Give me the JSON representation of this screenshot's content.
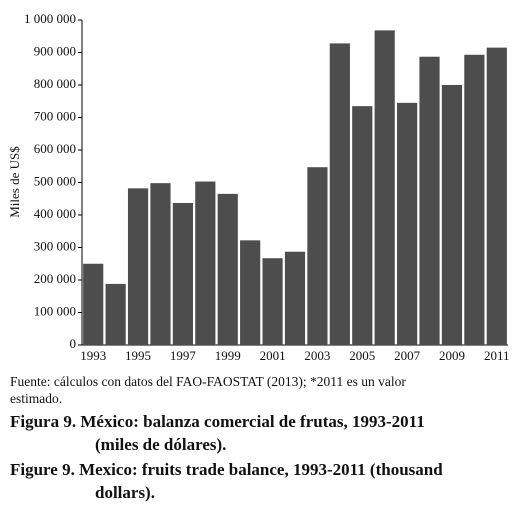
{
  "chart_data": {
    "type": "bar",
    "y_label": "Miles de US$",
    "categories": [
      "1993",
      null,
      "1995",
      null,
      "1997",
      null,
      "1999",
      null,
      "2001",
      null,
      "2003",
      null,
      "2005",
      null,
      "2007",
      null,
      "2009",
      null,
      "2011"
    ],
    "values": [
      250000,
      188000,
      482000,
      498000,
      437000,
      503000,
      465000,
      322000,
      267000,
      287000,
      547000,
      928000,
      735000,
      968000,
      745000,
      887000,
      800000,
      893000,
      915000
    ],
    "color": "#4d4d4d",
    "ylim": [
      0,
      1000000
    ],
    "yticks": [
      0,
      {
        "value": 100000,
        "label": "100 000"
      },
      {
        "value": 200000,
        "label": "200 000"
      },
      {
        "value": 300000,
        "label": "300 000"
      },
      {
        "value": 400000,
        "label": "400 000"
      },
      {
        "value": 500000,
        "label": "500 000"
      },
      {
        "value": 600000,
        "label": "600 000"
      },
      {
        "value": 700000,
        "label": "700 000"
      },
      {
        "value": 800000,
        "label": "800 000"
      },
      {
        "value": 900000,
        "label": "900 000"
      },
      {
        "value": 1000000,
        "label": "1 000 000"
      }
    ],
    "source_lines": [
      "Fuente: cálculos con datos del FAO-FAOSTAT (2013); *2011 es un valor",
      "estimado."
    ],
    "caption_es": [
      "Figura 9. México: balanza comercial de frutas, 1993-2011",
      "(miles de dólares)."
    ],
    "caption_en": [
      "Figure 9. Mexico: fruits trade balance, 1993-2011 (thousand",
      "dollars)."
    ]
  }
}
